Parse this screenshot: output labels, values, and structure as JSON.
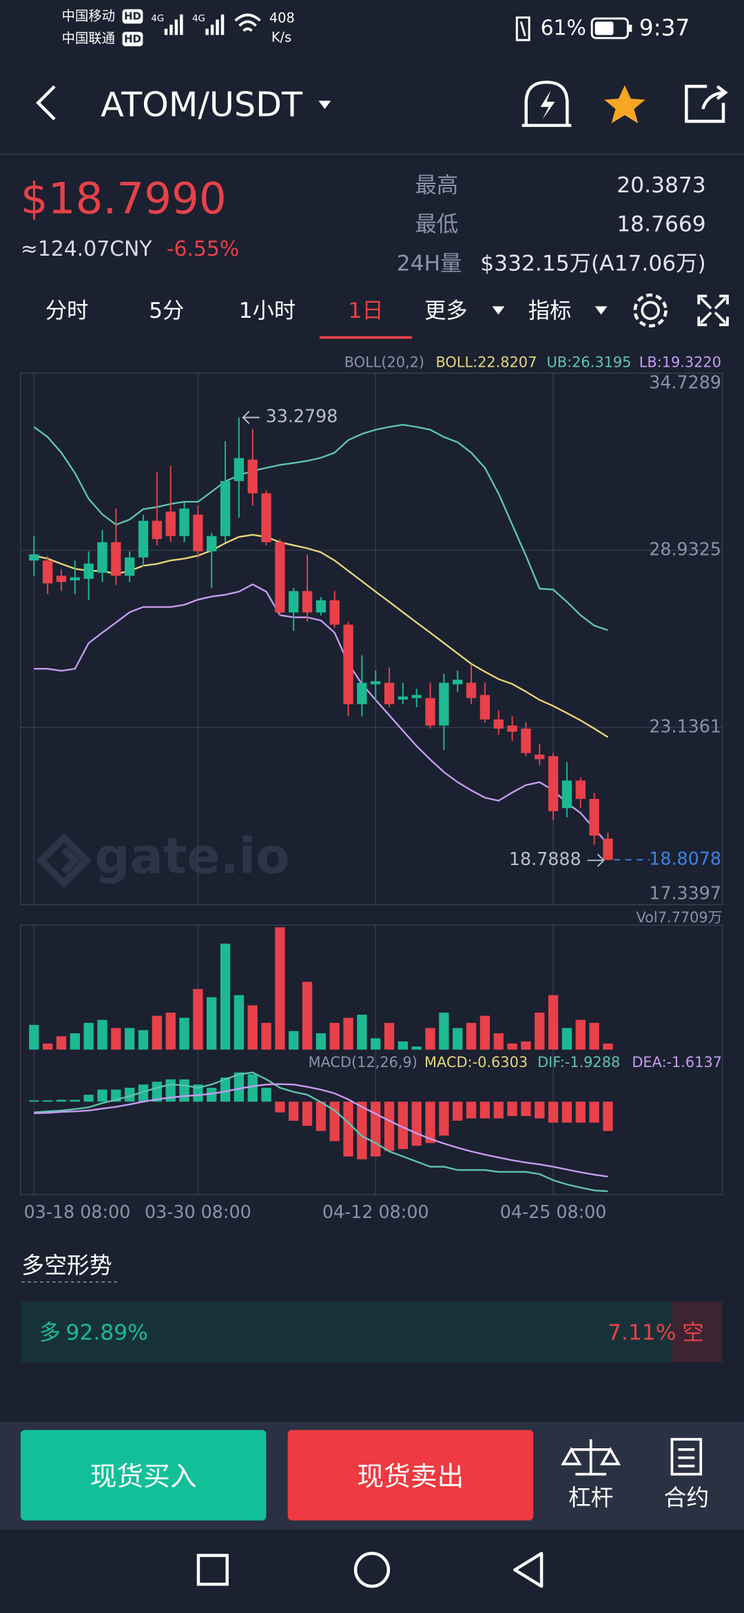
{
  "status_bar": {
    "carrier1": "中国移动",
    "carrier2": "中国联通",
    "hd1": "HD",
    "hd2": "HD",
    "net1": "4G",
    "net2": "4G",
    "speed": "408",
    "speed_unit": "K/s",
    "battery": "61%",
    "time": "9:37"
  },
  "header": {
    "pair": "ATOM/USDT"
  },
  "ticker": {
    "price": "$18.7990",
    "cny": "≈124.07CNY",
    "change": "-6.55%",
    "high_label": "最高",
    "high": "20.3873",
    "low_label": "最低",
    "low": "18.7669",
    "vol_label": "24H量",
    "vol": "$332.15万(A17.06万)"
  },
  "tabs": [
    "分时",
    "5分",
    "1小时",
    "1日",
    "更多",
    "指标"
  ],
  "active_tab": 3,
  "chart": {
    "boll_legend": {
      "name": "BOLL(20,2)",
      "mid": "BOLL:22.8207",
      "ub": "UB:26.3195",
      "lb": "LB:19.3220"
    },
    "watermark": "gate.io",
    "colors": {
      "up": "#1db992",
      "down": "#e8414a",
      "boll_upper": "#5ec4b0",
      "boll_mid": "#e6d67a",
      "boll_lower": "#c79cf0",
      "last_price": "#3b82e6"
    },
    "ylim": [
      17.3397,
      34.7289
    ],
    "yticks": [
      34.7289,
      28.9325,
      23.1361,
      17.3397
    ],
    "dates": [
      "03-18 08:00",
      null,
      null,
      null,
      null,
      null,
      null,
      null,
      null,
      null,
      null,
      null,
      "03-30 08:00",
      null,
      null,
      null,
      null,
      null,
      null,
      null,
      null,
      null,
      null,
      null,
      null,
      "04-12 08:00",
      null,
      null,
      null,
      null,
      null,
      null,
      null,
      null,
      null,
      null,
      null,
      null,
      "04-25 08:00",
      null,
      null,
      null,
      null
    ],
    "open": [
      28.6,
      28.6,
      28.1,
      27.95,
      28.0,
      28.2,
      29.2,
      28.1,
      28.7,
      29.9,
      30.2,
      29.4,
      30.1,
      28.9,
      29.4,
      31.2,
      31.9,
      30.8,
      29.2,
      26.9,
      27.6,
      26.9,
      27.3,
      26.5,
      23.9,
      24.55,
      24.6,
      24.05,
      24.1,
      24.1,
      23.2,
      24.55,
      24.6,
      24.2,
      23.4,
      23.2,
      23.1,
      22.25,
      22.2,
      20.5,
      21.4,
      20.8,
      19.5
    ],
    "high": [
      29.4,
      28.75,
      28.3,
      28.6,
      28.9,
      29.6,
      30.3,
      28.9,
      30.1,
      31.5,
      31.7,
      30.5,
      30.4,
      29.5,
      32.5,
      33.2798,
      32.9,
      30.9,
      29.3,
      27.7,
      28.8,
      27.4,
      27.6,
      26.6,
      25.5,
      25.0,
      25.1,
      24.6,
      24.4,
      24.6,
      24.9,
      25.0,
      25.2,
      24.6,
      23.7,
      23.5,
      23.3,
      22.6,
      22.3,
      22.0,
      21.5,
      21.0,
      19.7
    ],
    "low": [
      28.1,
      27.5,
      27.6,
      27.5,
      27.3,
      27.9,
      27.8,
      27.9,
      28.4,
      29.1,
      29.2,
      29.2,
      28.7,
      27.7,
      29.2,
      30.0,
      30.4,
      29.1,
      26.8,
      26.3,
      26.6,
      26.8,
      26.4,
      23.5,
      23.5,
      24.0,
      23.8,
      23.9,
      23.8,
      23.1,
      22.4,
      24.3,
      23.9,
      23.3,
      22.9,
      22.7,
      22.2,
      21.9,
      20.1,
      20.2,
      20.5,
      19.3,
      18.7888
    ],
    "close": [
      28.8,
      27.85,
      27.9,
      28.05,
      28.5,
      29.2,
      28.1,
      28.7,
      29.9,
      29.3,
      29.4,
      30.3,
      28.9,
      29.4,
      31.2,
      31.95,
      30.8,
      29.2,
      26.9,
      27.6,
      26.9,
      27.3,
      26.5,
      23.9,
      24.6,
      24.65,
      23.9,
      24.15,
      24.2,
      23.2,
      24.6,
      24.7,
      24.1,
      23.4,
      23.1,
      23.0,
      22.3,
      22.1,
      20.4,
      21.4,
      20.8,
      19.6,
      18.8078
    ],
    "boll_upper": [
      32.97,
      32.64,
      32.13,
      31.46,
      30.62,
      30.11,
      29.77,
      29.94,
      30.28,
      30.35,
      30.45,
      30.52,
      30.52,
      30.85,
      31.19,
      31.39,
      31.53,
      31.63,
      31.73,
      31.79,
      31.86,
      31.96,
      32.13,
      32.54,
      32.74,
      32.88,
      32.97,
      33.04,
      32.97,
      32.88,
      32.64,
      32.47,
      32.13,
      31.63,
      30.79,
      29.77,
      28.76,
      27.68,
      27.65,
      27.25,
      26.81,
      26.47,
      26.3195
    ],
    "boll_mid": [
      28.76,
      28.66,
      28.49,
      28.33,
      28.26,
      28.26,
      28.16,
      28.26,
      28.43,
      28.49,
      28.6,
      28.66,
      28.76,
      28.93,
      29.17,
      29.37,
      29.44,
      29.37,
      29.2,
      29.1,
      29.0,
      28.87,
      28.6,
      28.26,
      27.92,
      27.58,
      27.25,
      26.91,
      26.57,
      26.24,
      25.9,
      25.56,
      25.22,
      24.96,
      24.72,
      24.56,
      24.31,
      24.04,
      23.84,
      23.61,
      23.37,
      23.1,
      22.8207
    ],
    "boll_lower": [
      25.06,
      25.06,
      24.99,
      25.06,
      25.9,
      26.24,
      26.57,
      26.91,
      27.08,
      27.08,
      27.08,
      27.15,
      27.32,
      27.42,
      27.48,
      27.58,
      27.82,
      27.58,
      26.81,
      26.74,
      26.74,
      26.64,
      26.24,
      25.23,
      24.56,
      24.04,
      23.54,
      23.03,
      22.53,
      22.09,
      21.68,
      21.35,
      21.08,
      20.84,
      20.74,
      21.01,
      21.25,
      21.35,
      21.08,
      20.67,
      20.34,
      19.83,
      19.322
    ],
    "high_marker": 33.2798,
    "low_marker": 18.7888,
    "last_price": 18.8078,
    "volume": {
      "label": "Vol7.7709万",
      "ylim": [
        0,
        7.7709
      ],
      "values": [
        1.57,
        0.39,
        0.85,
        1.04,
        1.7,
        1.89,
        1.37,
        1.37,
        1.24,
        2.15,
        2.35,
        2.02,
        3.85,
        3.33,
        6.73,
        3.46,
        2.81,
        1.7,
        7.7709,
        1.18,
        4.31,
        1.04,
        1.7,
        2.02,
        2.22,
        0.72,
        1.7,
        0.52,
        0.2,
        1.37,
        2.35,
        1.37,
        1.7,
        2.15,
        1.04,
        0.39,
        0.52,
        2.35,
        3.46,
        1.37,
        1.89,
        1.7,
        0.39
      ]
    },
    "macd": {
      "legend": {
        "name": "MACD(12,26,9)",
        "macd": "MACD:-0.6303",
        "dif": "DIF:-1.9288",
        "dea": "DEA:-1.6137"
      },
      "ylim": [
        -2.0,
        0.7
      ],
      "hist": [
        0.03,
        0.03,
        0.04,
        0.04,
        0.15,
        0.26,
        0.26,
        0.3,
        0.37,
        0.43,
        0.48,
        0.48,
        0.37,
        0.3,
        0.52,
        0.63,
        0.59,
        0.3,
        -0.23,
        -0.41,
        -0.52,
        -0.63,
        -0.85,
        -1.18,
        -1.24,
        -1.18,
        -1.06,
        -1.02,
        -0.95,
        -0.89,
        -0.73,
        -0.41,
        -0.36,
        -0.36,
        -0.36,
        -0.31,
        -0.31,
        -0.36,
        -0.45,
        -0.45,
        -0.45,
        -0.45,
        -0.6303
      ],
      "dif": [
        -0.23,
        -0.21,
        -0.19,
        -0.16,
        -0.12,
        -0.03,
        0.04,
        0.12,
        0.21,
        0.3,
        0.37,
        0.35,
        0.3,
        0.37,
        0.48,
        0.59,
        0.63,
        0.48,
        0.3,
        0.21,
        0.15,
        -0.01,
        -0.19,
        -0.45,
        -0.74,
        -0.89,
        -1.07,
        -1.18,
        -1.29,
        -1.4,
        -1.4,
        -1.47,
        -1.47,
        -1.47,
        -1.51,
        -1.51,
        -1.51,
        -1.56,
        -1.69,
        -1.78,
        -1.85,
        -1.91,
        -1.9288
      ],
      "dea": [
        -0.25,
        -0.24,
        -0.22,
        -0.21,
        -0.19,
        -0.15,
        -0.11,
        -0.06,
        0.0,
        0.05,
        0.09,
        0.12,
        0.14,
        0.17,
        0.22,
        0.28,
        0.33,
        0.37,
        0.38,
        0.37,
        0.32,
        0.26,
        0.18,
        0.05,
        -0.11,
        -0.26,
        -0.41,
        -0.55,
        -0.68,
        -0.8,
        -0.9,
        -0.99,
        -1.07,
        -1.14,
        -1.2,
        -1.26,
        -1.31,
        -1.35,
        -1.4,
        -1.46,
        -1.52,
        -1.57,
        -1.6137
      ]
    }
  },
  "sentiment": {
    "title": "多空形势",
    "long_label": "多",
    "long": {
      "value": 92.89,
      "label": "92.89%"
    },
    "short": {
      "value": 7.11,
      "label": "7.11%"
    },
    "short_label": "空"
  },
  "buttons": {
    "buy": "现货买入",
    "sell": "现货卖出",
    "leverage": "杠杆",
    "contract": "合约"
  }
}
